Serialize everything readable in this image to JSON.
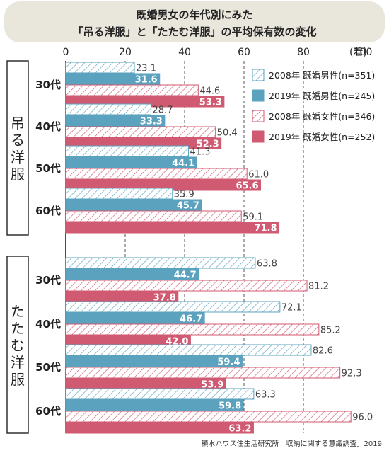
{
  "title_line1": "既婚男女の年代別にみた",
  "title_line2": "「吊る洋服」と「たたむ洋服」の平均保有数の変化",
  "unit_label": "(着)",
  "source": "積水ハウス住生活研究所「収納に関する意識調査」2019",
  "chart_data": {
    "type": "bar",
    "orientation": "horizontal",
    "xlim": [
      0,
      100
    ],
    "x_ticks": [
      "0",
      "20",
      "40",
      "60",
      "80",
      "100"
    ],
    "grid": "dashed vertical at 20, 40, 60, 80",
    "legend_position": "right",
    "groups": [
      {
        "label": "吊る洋服",
        "categories": [
          "30代",
          "40代",
          "50代",
          "60代"
        ]
      },
      {
        "label": "たたむ洋服",
        "categories": [
          "30代",
          "40代",
          "50代",
          "60代"
        ]
      }
    ],
    "series": [
      {
        "name": "2008年 既婚男性(n=351)",
        "color": "#5ba2bf",
        "pattern": "hatched",
        "values": [
          23.1,
          28.7,
          41.3,
          35.9,
          63.8,
          72.1,
          82.6,
          63.3
        ]
      },
      {
        "name": "2019年 既婚男性(n=245)",
        "color": "#5ba2bf",
        "pattern": "solid",
        "values": [
          31.6,
          33.3,
          44.1,
          45.7,
          44.7,
          46.7,
          59.4,
          59.8
        ]
      },
      {
        "name": "2008年 既婚女性(n=346)",
        "color": "#d05a72",
        "pattern": "hatched",
        "values": [
          44.6,
          50.4,
          61.0,
          59.1,
          81.2,
          85.2,
          92.3,
          96.0
        ]
      },
      {
        "name": "2019年 既婚女性(n=252)",
        "color": "#d05a72",
        "pattern": "solid",
        "values": [
          53.3,
          52.3,
          65.6,
          71.8,
          37.8,
          42.0,
          53.9,
          63.2
        ]
      }
    ]
  }
}
